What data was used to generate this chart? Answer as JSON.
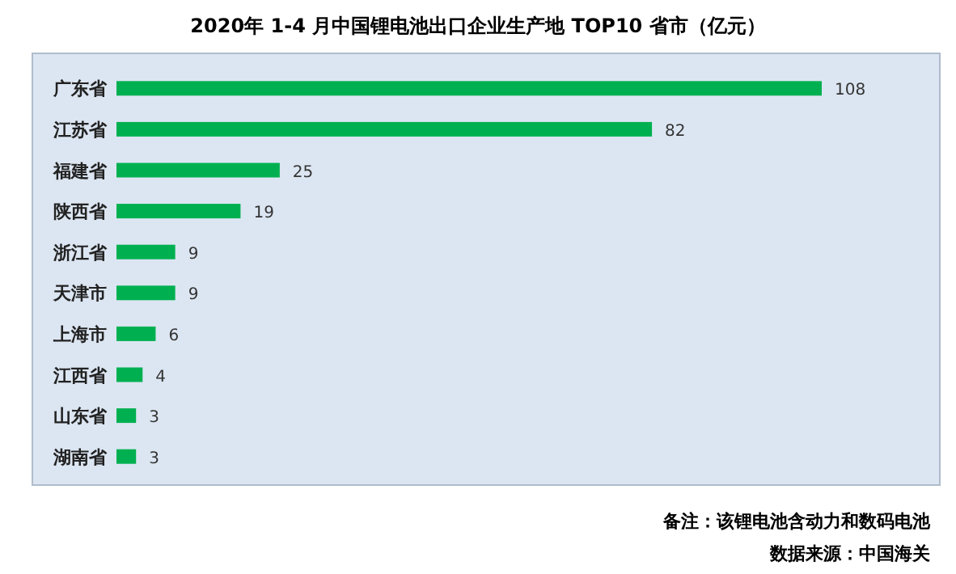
{
  "chart_data": {
    "type": "bar",
    "orientation": "horizontal",
    "title": "2020年 1-4 月中国锂电池出口企业生产地 TOP10 省市（亿元）",
    "categories": [
      "广东省",
      "江苏省",
      "福建省",
      "陕西省",
      "浙江省",
      "天津市",
      "上海市",
      "江西省",
      "山东省",
      "湖南省"
    ],
    "values": [
      108,
      82,
      25,
      19,
      9,
      9,
      6,
      4,
      3,
      3
    ],
    "color": "#00b050",
    "data_labels": true,
    "annotations": [
      "备注：该锂电池含动力和数码电池",
      "数据来源：中国海关"
    ]
  }
}
